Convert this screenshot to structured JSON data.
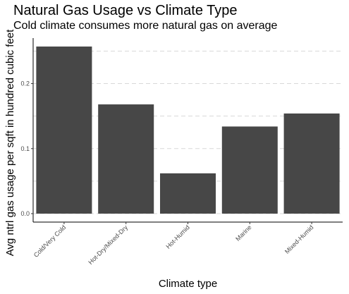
{
  "chart_data": {
    "type": "bar",
    "title": "Natural Gas Usage vs Climate Type",
    "subtitle": "Cold climate consumes more natural gas on average",
    "xlabel": "Climate type",
    "ylabel": "Avg ntrl gas usage per sqft in hundred cubic feet",
    "categories": [
      "Cold/Very Cold",
      "Hot-Dry/Mixed-Dry",
      "Hot-Humid",
      "Marine",
      "Mixed-Humid"
    ],
    "values": [
      0.257,
      0.168,
      0.062,
      0.134,
      0.154
    ],
    "ylim": [
      -0.013,
      0.27
    ],
    "yticks": [
      0.0,
      0.1,
      0.2
    ],
    "ytick_labels": [
      "0.0",
      "0.1",
      "0.2"
    ],
    "grid": "dashed horizontal major and minor",
    "bar_color": "#474747",
    "grid_color": "#d9d9d9"
  }
}
